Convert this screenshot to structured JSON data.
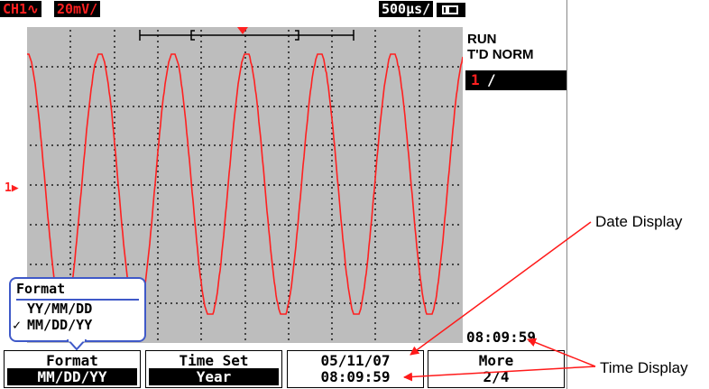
{
  "status_bar": {
    "channel": "CH1∿",
    "volts_div": "20mV/",
    "time_div": "500µs/",
    "battery_icon": "battery-icon"
  },
  "right_panel": {
    "run_state": "RUN",
    "trigger_mode": "T'D NORM",
    "trigger_channel": "1",
    "trigger_slope": "/"
  },
  "channel_marker": "1",
  "popup": {
    "title": "Format",
    "options": [
      "YY/MM/DD",
      "MM/DD/YY"
    ],
    "selected_index": 1,
    "check_mark": "✓"
  },
  "clock": "08:09:59",
  "softkeys": [
    {
      "label": "Format",
      "value": "MM/DD/YY"
    },
    {
      "label": "Time Set",
      "value": "Year"
    },
    {
      "label": "05/11/07",
      "value": "08:09:59"
    },
    {
      "label": "More",
      "value": "2/4"
    }
  ],
  "callouts": {
    "date_display": "Date Display",
    "time_display": "Time Display"
  },
  "colors": {
    "trace": "#ff2020",
    "grid_bg": "#bdbdbd",
    "popup_border": "#3f59c8"
  }
}
